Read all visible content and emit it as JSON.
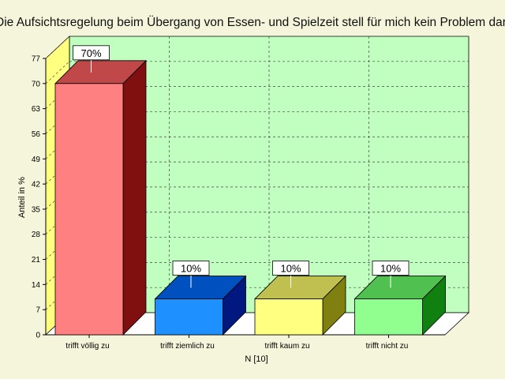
{
  "chart_data": {
    "type": "bar",
    "title": "Die Aufsichtsregelung beim Übergang von Essen- und Spielzeit stell für mich kein Problem dar",
    "xlabel": "N [10]",
    "ylabel": "Anteil in %",
    "ylim": [
      0,
      77
    ],
    "yticks": [
      0,
      7,
      14,
      21,
      28,
      35,
      42,
      49,
      56,
      63,
      70,
      77
    ],
    "categories": [
      "trifft völlig zu",
      "trifft ziemlich zu",
      "trifft kaum zu",
      "trifft nicht zu"
    ],
    "values": [
      70,
      10,
      10,
      10
    ],
    "value_labels": [
      "70%",
      "10%",
      "10%",
      "10%"
    ],
    "grid": true,
    "style": "3d",
    "colors": {
      "background": "#f5f5dc",
      "plot_back": "#c0ffc0",
      "plot_side": "#ffff80",
      "floor": "#ffffff",
      "bars": [
        {
          "front": "#ff8080",
          "top": "#c04848",
          "side": "#801010"
        },
        {
          "front": "#1e90ff",
          "top": "#0050c0",
          "side": "#001880"
        },
        {
          "front": "#ffff80",
          "top": "#c0c050",
          "side": "#808010"
        },
        {
          "front": "#90ff90",
          "top": "#50c050",
          "side": "#108010"
        }
      ]
    }
  }
}
